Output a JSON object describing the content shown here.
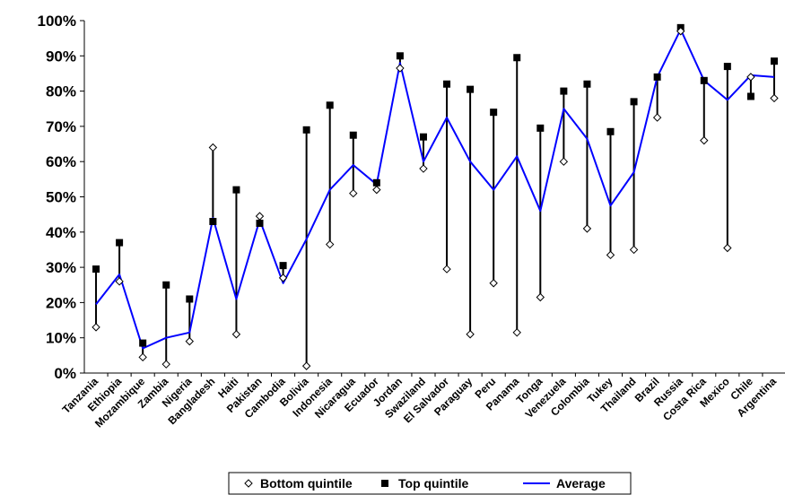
{
  "chart_data": {
    "type": "line",
    "categories": [
      "Tanzania",
      "Ethiopia",
      "Mozambique",
      "Zambia",
      "Nigeria",
      "Bangladesh",
      "Haiti",
      "Pakistan",
      "Cambodia",
      "Bolivia",
      "Indonesia",
      "Nicaragua",
      "Ecuador",
      "Jordan",
      "Swaziland",
      "El Salvador",
      "Paraguay",
      "Peru",
      "Panama",
      "Tonga",
      "Venezuela",
      "Colombia",
      "Tukey",
      "Thailand",
      "Brazil",
      "Russia",
      "Costa Rica",
      "Mexico",
      "Chile",
      "Argentina"
    ],
    "series": [
      {
        "name": "Bottom quintile",
        "marker": "open-diamond",
        "values": [
          13,
          26,
          4.5,
          2.5,
          9,
          64,
          11,
          44.5,
          27,
          2,
          36.5,
          51,
          52,
          86.5,
          58,
          29.5,
          11,
          25.5,
          11.5,
          21.5,
          60,
          41,
          33.5,
          35,
          72.5,
          97,
          66,
          35.5,
          84,
          78
        ]
      },
      {
        "name": "Top quintile",
        "marker": "filled-square",
        "values": [
          29.5,
          37,
          8.5,
          25,
          21,
          43,
          52,
          42.5,
          30.5,
          69,
          76,
          67.5,
          54,
          90,
          67,
          82,
          80.5,
          74,
          89.5,
          69.5,
          80,
          82,
          68.5,
          77,
          84,
          98,
          83,
          87,
          78.5,
          88.5
        ]
      },
      {
        "name": "Average",
        "marker": "line",
        "color": "#0000ff",
        "values": [
          19.5,
          28,
          7,
          10,
          11.5,
          44,
          21,
          43.5,
          25.5,
          38,
          52,
          59,
          53.5,
          88,
          60,
          72.5,
          60,
          52,
          61.5,
          46,
          75,
          66.5,
          47.5,
          57,
          84,
          97.5,
          83,
          77.5,
          84.5,
          84
        ]
      }
    ],
    "y_ticks": [
      "0%",
      "10%",
      "20%",
      "30%",
      "40%",
      "50%",
      "60%",
      "70%",
      "80%",
      "90%",
      "100%"
    ],
    "ylim": [
      0,
      100
    ],
    "legend": {
      "placement": "bottom",
      "entries": [
        "Bottom quintile",
        "Top quintile",
        "Average"
      ]
    },
    "colors": {
      "average_line": "#0000ff",
      "markers": "#000000",
      "range_bars": "#000000"
    },
    "grid": false
  }
}
